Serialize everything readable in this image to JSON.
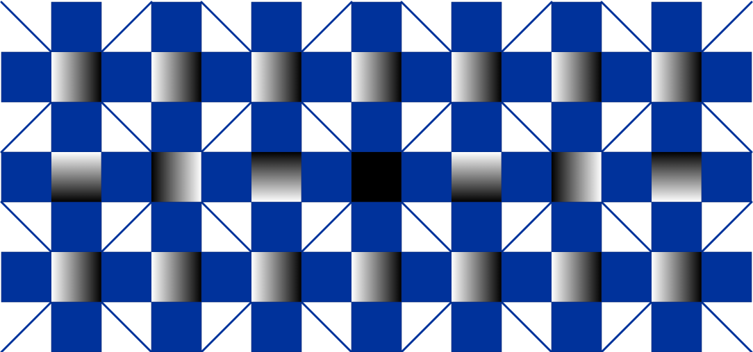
{
  "colors": {
    "background": "#ffffff",
    "tile": "#00329b",
    "tile_border": "#0a2770",
    "line": "#00329b",
    "gradient_light": "#ffffff",
    "gradient_dark": "#000000",
    "solid_center": "#000000"
  },
  "pattern": {
    "rows": 7,
    "cols": 15,
    "row_shading": {
      "1": [
        "light-to-dark-horizontal",
        "light-to-dark-horizontal",
        "light-to-dark-horizontal",
        "light-to-dark-horizontal",
        "light-to-dark-horizontal",
        "light-to-dark-horizontal",
        "light-to-dark-horizontal"
      ],
      "3": [
        "light-to-dark-vertical",
        "dark-to-light-horizontal",
        "dark-to-light-vertical",
        "solid-black",
        "light-to-dark-vertical",
        "dark-to-light-horizontal",
        "dark-to-light-vertical"
      ],
      "5": [
        "light-to-dark-horizontal",
        "light-to-dark-horizontal",
        "light-to-dark-horizontal",
        "light-to-dark-horizontal",
        "light-to-dark-horizontal",
        "light-to-dark-horizontal",
        "light-to-dark-horizontal"
      ]
    }
  }
}
